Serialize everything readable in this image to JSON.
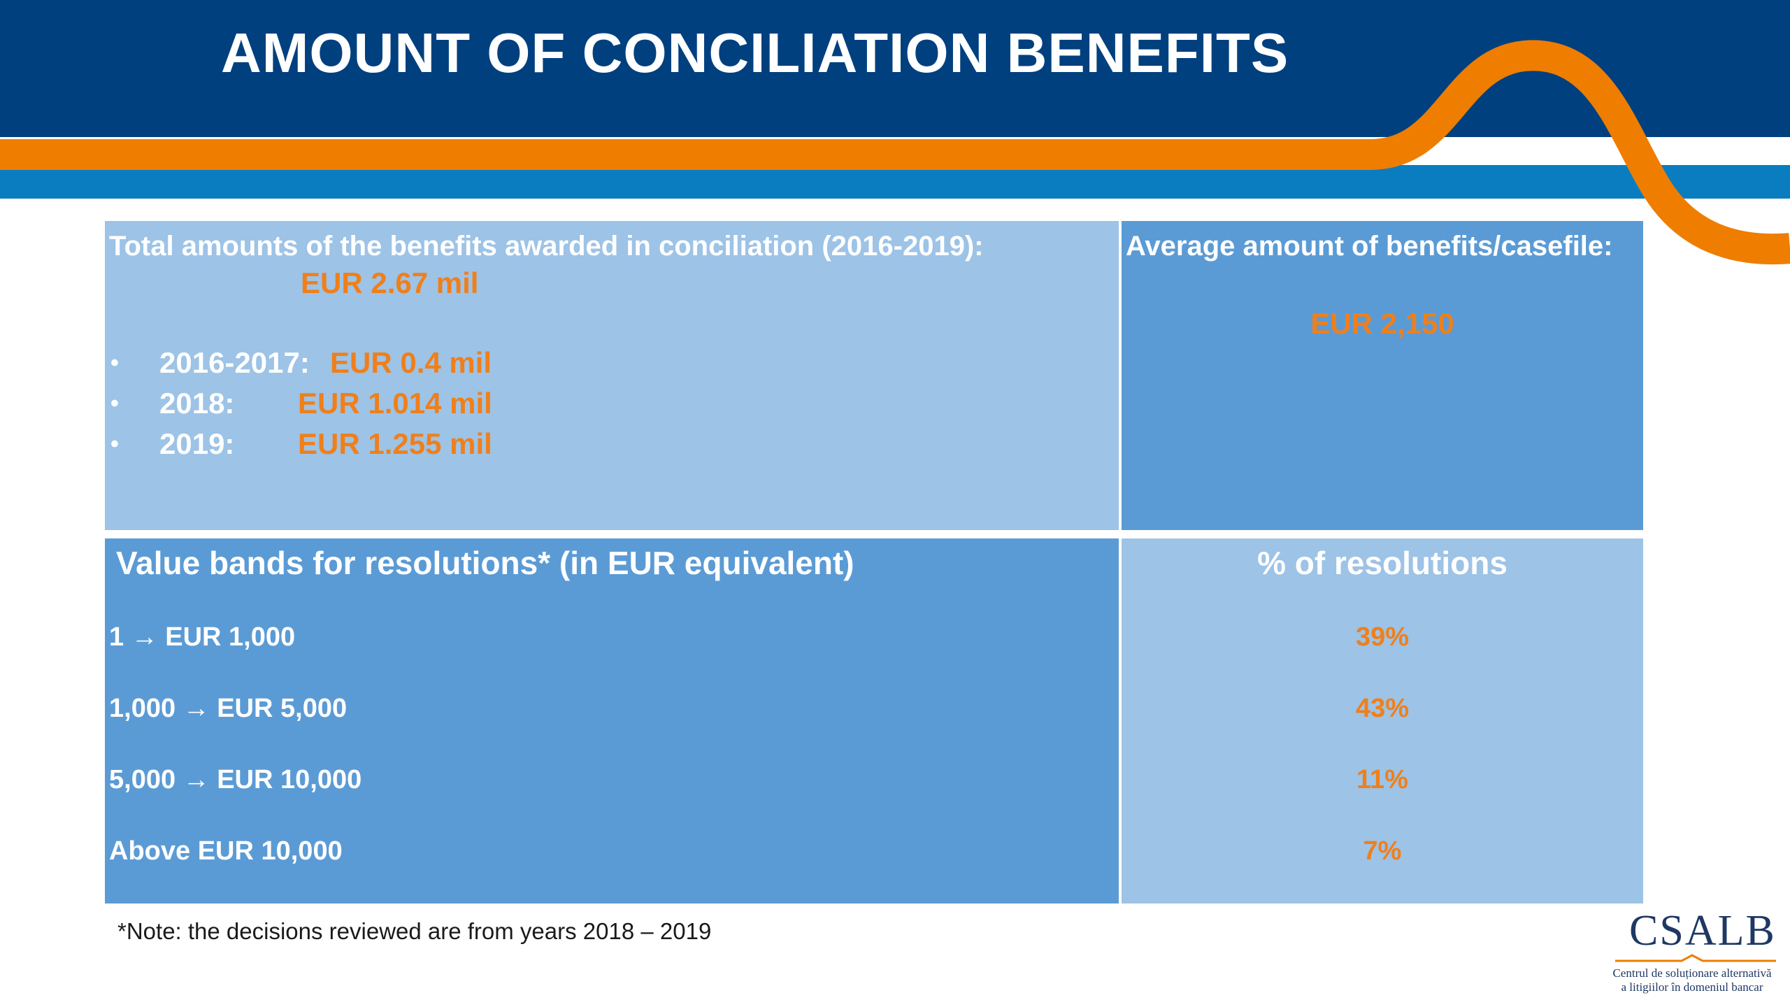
{
  "title": "AMOUNT OF CONCILIATION BENEFITS",
  "colors": {
    "navy": "#00407f",
    "orange": "#ef7d00",
    "blue_band": "#0a7dc1",
    "cell_light": "#9dc3e6",
    "cell_mid": "#5b9bd5",
    "accent_text": "#f07f1a"
  },
  "total": {
    "heading": "Total amounts of the benefits awarded in conciliation (2016-2019):",
    "amount": "EUR 2.67 mil",
    "years": [
      {
        "year": "2016-2017:",
        "amount": "EUR 0.4 mil"
      },
      {
        "year": "2018:",
        "amount": "EUR 1.014 mil"
      },
      {
        "year": "2019:",
        "amount": "EUR 1.255 mil"
      }
    ]
  },
  "average": {
    "heading": "Average amount of benefits/casefile:",
    "amount": "EUR 2,150"
  },
  "bands": {
    "heading": "Value bands for resolutions* (in EUR equivalent)",
    "percent_heading": "% of resolutions",
    "rows": [
      {
        "band": "1 → EUR 1,000",
        "percent": "39%"
      },
      {
        "band": "1,000 → EUR 5,000",
        "percent": "43%"
      },
      {
        "band": "5,000 → EUR 10,000",
        "percent": "11%"
      },
      {
        "band": "Above EUR 10,000",
        "percent": "7%"
      }
    ]
  },
  "note": "*Note: the decisions reviewed are from years 2018 – 2019",
  "logo": {
    "mark": "CSALB",
    "line1": "Centrul de soluționare alternativă",
    "line2": "a litigiilor în domeniul bancar"
  }
}
